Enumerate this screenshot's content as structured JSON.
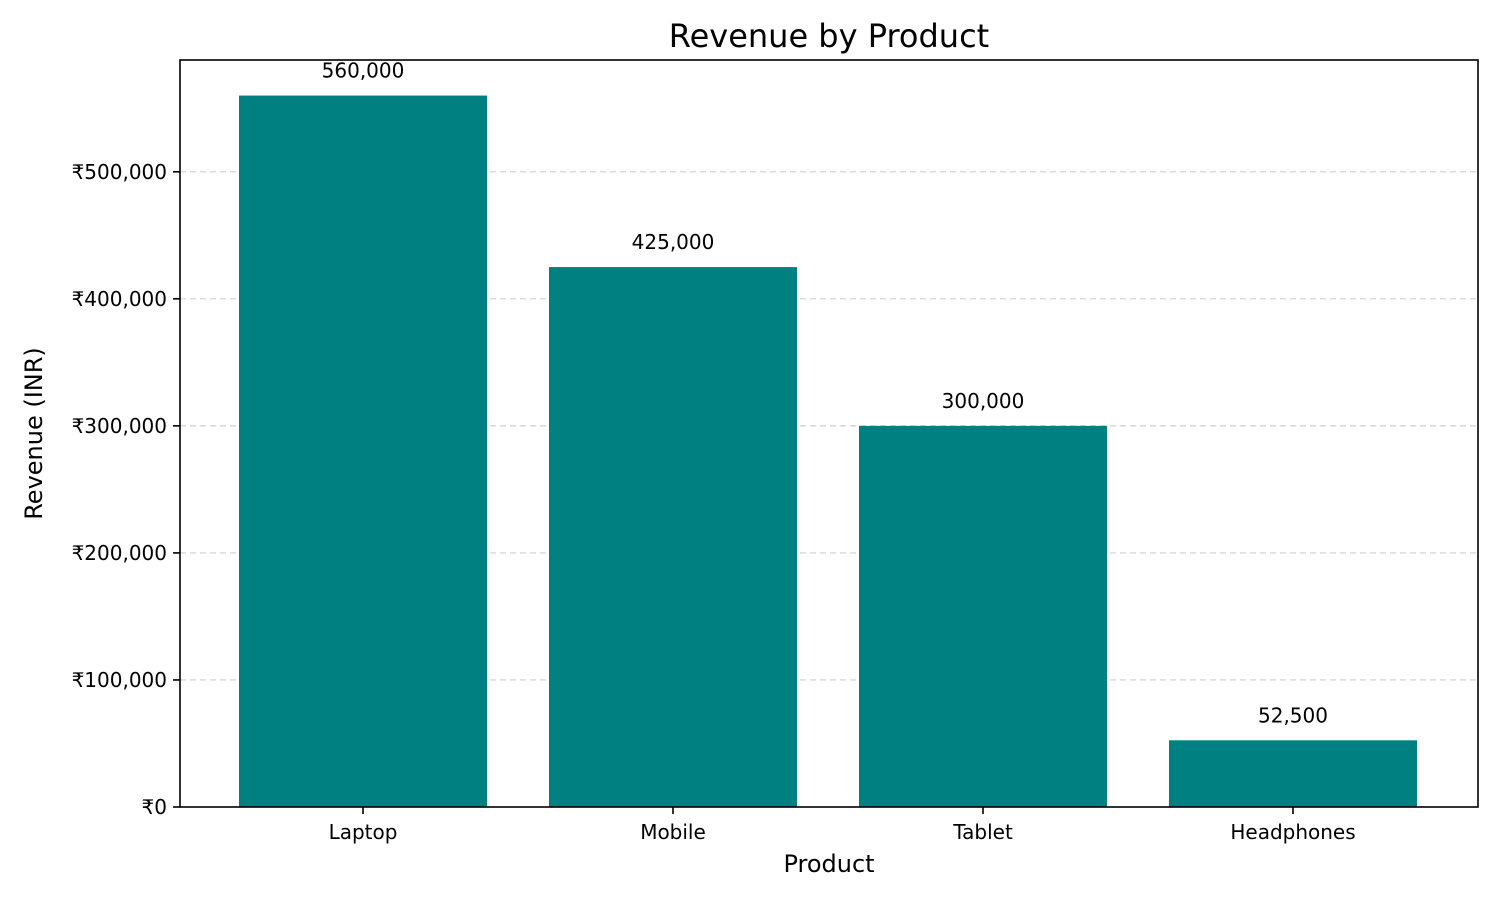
{
  "chart_data": {
    "type": "bar",
    "title": "Revenue by Product",
    "xlabel": "Product",
    "ylabel": "Revenue (INR)",
    "categories": [
      "Laptop",
      "Mobile",
      "Tablet",
      "Headphones"
    ],
    "values": [
      560000,
      425000,
      300000,
      52500
    ],
    "value_labels": [
      "560,000",
      "425,000",
      "300,000",
      "52,500"
    ],
    "ylim": [
      0,
      588000
    ],
    "yticks": [
      0,
      100000,
      200000,
      300000,
      400000,
      500000
    ],
    "ytick_labels": [
      "₹0",
      "₹100,000",
      "₹200,000",
      "₹300,000",
      "₹400,000",
      "₹500,000"
    ],
    "grid": true,
    "bar_color": "#008080"
  }
}
